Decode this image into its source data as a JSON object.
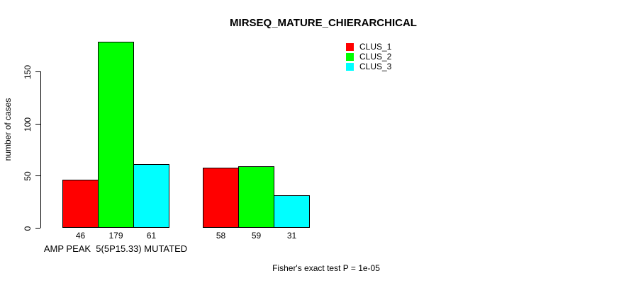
{
  "chart_data": {
    "type": "bar",
    "title": "MIRSEQ_MATURE_CHIERARCHICAL",
    "ylabel": "number of cases",
    "xlabel": "",
    "yticks": [
      0,
      50,
      100,
      150
    ],
    "ylim": [
      0,
      185
    ],
    "categories": [
      "AMP PEAK  5(5P15.33) MUTATED",
      ""
    ],
    "series": [
      {
        "name": "CLUS_1",
        "color": "#ff0000",
        "values": [
          46,
          58
        ]
      },
      {
        "name": "CLUS_2",
        "color": "#00ff00",
        "values": [
          179,
          59
        ]
      },
      {
        "name": "CLUS_3",
        "color": "#00ffff",
        "values": [
          61,
          31
        ]
      }
    ],
    "bar_value_labels": [
      [
        46,
        179,
        61
      ],
      [
        58,
        59,
        31
      ]
    ],
    "annotation": "Fisher's exact test P = 1e-05",
    "legend_position": "top-right",
    "grid": false,
    "bar_border_color": "#000000",
    "axis_color": "#000000",
    "text_color": "#000000",
    "background": "#ffffff"
  }
}
